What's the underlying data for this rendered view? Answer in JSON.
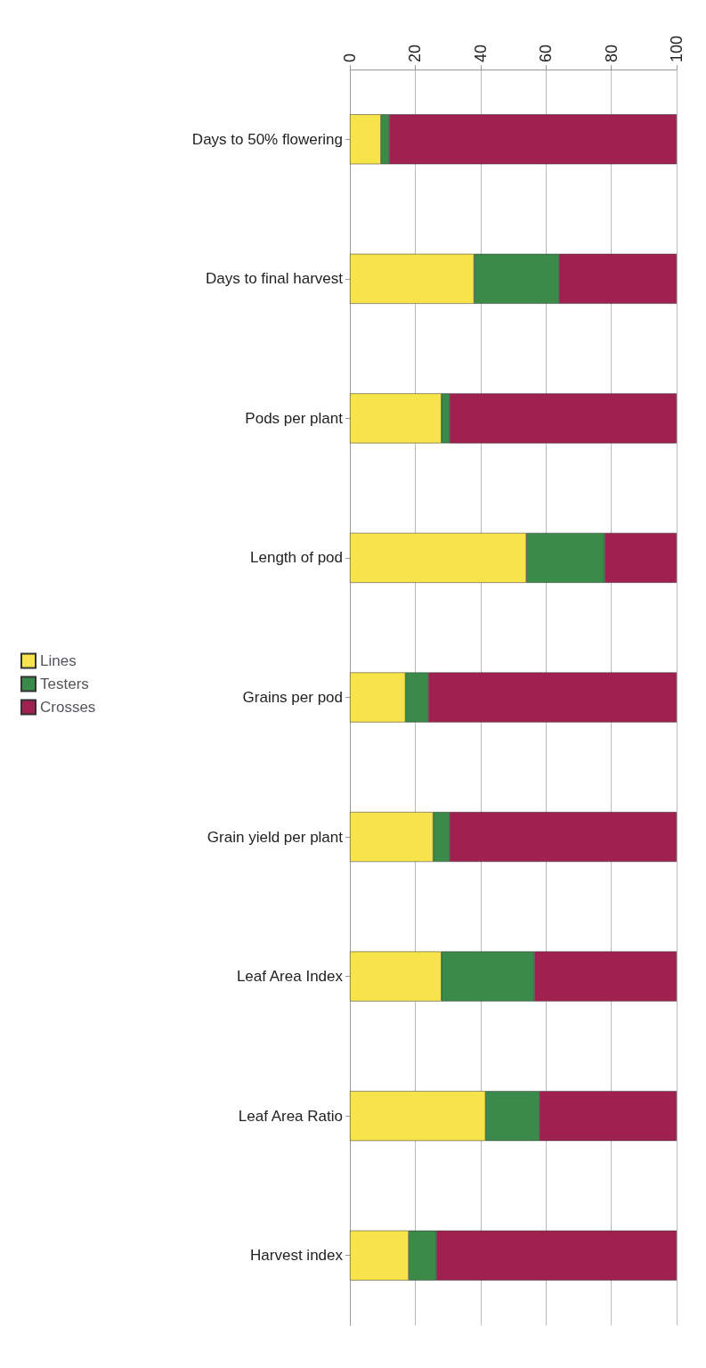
{
  "chart_data": {
    "type": "bar",
    "orientation": "horizontal",
    "stacked": true,
    "categories": [
      "Days to 50% flowering",
      "Days to final harvest",
      "Pods per plant",
      "Length of pod",
      "Grains per pod",
      "Grain yield per plant",
      "Leaf Area Index",
      "Leaf Area Ratio",
      "Harvest index"
    ],
    "series": [
      {
        "name": "Lines",
        "color": "#f7e34a",
        "values": [
          9.5,
          38,
          28,
          54,
          17,
          25.5,
          28,
          41.5,
          18
        ]
      },
      {
        "name": "Testers",
        "color": "#3a8a4a",
        "values": [
          2.5,
          26,
          2.5,
          24,
          7,
          5,
          28.5,
          16.5,
          8.5
        ]
      },
      {
        "name": "Crosses",
        "color": "#a0214f",
        "values": [
          88,
          36,
          69.5,
          22,
          76,
          69.5,
          43.5,
          42,
          73.5
        ]
      }
    ],
    "xlim": [
      0,
      100
    ],
    "xticks": [
      0,
      20,
      40,
      60,
      80,
      100
    ],
    "grid": "x",
    "legend": "left"
  }
}
